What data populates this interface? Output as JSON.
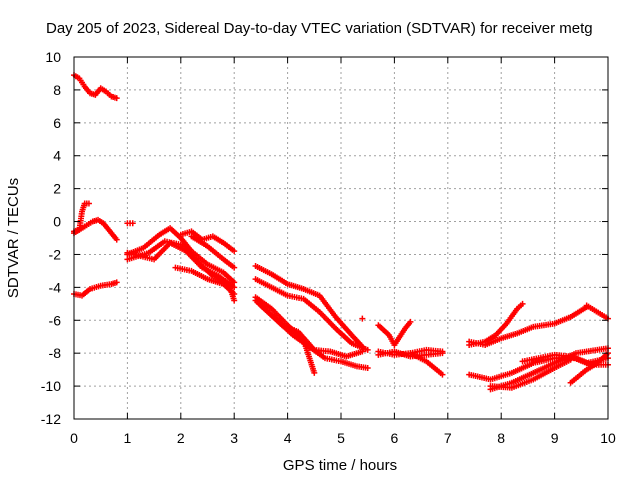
{
  "chart_data": {
    "type": "scatter",
    "title": "Day 205 of 2023, Sidereal Day-to-day VTEC variation (SDTVAR) for receiver metg",
    "xlabel": "GPS time / hours",
    "ylabel": "SDTVAR / TECUs",
    "xlim": [
      0,
      10
    ],
    "ylim": [
      -12,
      10
    ],
    "x_ticks": [
      "0",
      "1",
      "2",
      "3",
      "4",
      "5",
      "6",
      "7",
      "8",
      "9",
      "10"
    ],
    "y_ticks": [
      "-12",
      "-10",
      "-8",
      "-6",
      "-4",
      "-2",
      "0",
      "2",
      "4",
      "6",
      "8",
      "10"
    ],
    "grid": true,
    "marker": "+",
    "color": "#ff0000",
    "series": [
      {
        "points": [
          [
            0.0,
            8.9
          ],
          [
            0.1,
            8.7
          ],
          [
            0.2,
            8.2
          ],
          [
            0.3,
            7.8
          ],
          [
            0.4,
            7.7
          ],
          [
            0.5,
            8.1
          ],
          [
            0.6,
            7.9
          ],
          [
            0.7,
            7.6
          ],
          [
            0.8,
            7.5
          ]
        ]
      },
      {
        "points": [
          [
            0.0,
            -0.6
          ],
          [
            0.1,
            -0.5
          ],
          [
            0.15,
            0.6
          ],
          [
            0.2,
            1.1
          ],
          [
            0.28,
            1.1
          ]
        ]
      },
      {
        "points": [
          [
            0.0,
            -0.7
          ],
          [
            0.2,
            -0.3
          ],
          [
            0.35,
            0.0
          ],
          [
            0.45,
            0.1
          ],
          [
            0.55,
            -0.1
          ],
          [
            0.7,
            -0.7
          ],
          [
            0.8,
            -1.1
          ]
        ]
      },
      {
        "points": [
          [
            0.0,
            -4.4
          ],
          [
            0.15,
            -4.5
          ],
          [
            0.3,
            -4.1
          ],
          [
            0.5,
            -3.9
          ],
          [
            0.7,
            -3.8
          ],
          [
            0.8,
            -3.7
          ]
        ]
      },
      {
        "points": [
          [
            1.0,
            -0.1
          ],
          [
            1.1,
            -0.1
          ]
        ]
      },
      {
        "points": [
          [
            1.0,
            -2.0
          ],
          [
            1.3,
            -1.6
          ],
          [
            1.6,
            -0.8
          ],
          [
            1.8,
            -0.4
          ],
          [
            2.0,
            -1.0
          ],
          [
            2.2,
            -1.8
          ],
          [
            2.5,
            -2.6
          ],
          [
            2.8,
            -3.1
          ],
          [
            3.0,
            -3.7
          ]
        ]
      },
      {
        "points": [
          [
            1.0,
            -2.3
          ],
          [
            1.4,
            -1.9
          ],
          [
            1.7,
            -1.2
          ],
          [
            2.0,
            -1.4
          ],
          [
            2.3,
            -2.4
          ],
          [
            2.6,
            -3.3
          ],
          [
            2.9,
            -3.8
          ],
          [
            3.0,
            -4.8
          ]
        ]
      },
      {
        "points": [
          [
            1.0,
            -1.9
          ],
          [
            1.5,
            -2.3
          ],
          [
            1.8,
            -1.3
          ],
          [
            2.1,
            -1.8
          ],
          [
            2.4,
            -2.8
          ],
          [
            2.7,
            -3.3
          ],
          [
            3.0,
            -4.0
          ]
        ]
      },
      {
        "points": [
          [
            1.9,
            -2.8
          ],
          [
            2.2,
            -3.0
          ],
          [
            2.5,
            -3.5
          ],
          [
            2.8,
            -3.8
          ],
          [
            3.0,
            -4.4
          ]
        ]
      },
      {
        "points": [
          [
            2.0,
            -0.8
          ],
          [
            2.2,
            -0.6
          ],
          [
            2.4,
            -1.1
          ],
          [
            2.6,
            -0.9
          ],
          [
            2.8,
            -1.3
          ],
          [
            3.0,
            -1.8
          ]
        ]
      },
      {
        "points": [
          [
            2.2,
            -0.9
          ],
          [
            2.5,
            -1.5
          ],
          [
            2.8,
            -2.3
          ],
          [
            3.0,
            -2.8
          ]
        ]
      },
      {
        "points": [
          [
            3.4,
            -2.7
          ],
          [
            3.7,
            -3.2
          ],
          [
            4.0,
            -3.8
          ],
          [
            4.3,
            -4.1
          ],
          [
            4.6,
            -4.5
          ],
          [
            4.9,
            -5.8
          ],
          [
            5.2,
            -6.9
          ],
          [
            5.4,
            -7.6
          ]
        ]
      },
      {
        "points": [
          [
            3.4,
            -3.5
          ],
          [
            3.7,
            -4.0
          ],
          [
            4.0,
            -4.5
          ],
          [
            4.3,
            -4.7
          ],
          [
            4.6,
            -5.5
          ],
          [
            4.9,
            -6.5
          ],
          [
            5.2,
            -7.4
          ],
          [
            5.5,
            -7.8
          ]
        ]
      },
      {
        "points": [
          [
            3.4,
            -4.6
          ],
          [
            3.7,
            -5.3
          ],
          [
            4.0,
            -6.3
          ],
          [
            4.3,
            -7.2
          ],
          [
            4.5,
            -9.2
          ]
        ]
      },
      {
        "points": [
          [
            3.4,
            -4.8
          ],
          [
            3.8,
            -6.0
          ],
          [
            4.1,
            -6.9
          ],
          [
            4.4,
            -7.6
          ],
          [
            4.7,
            -8.3
          ],
          [
            5.0,
            -8.5
          ],
          [
            5.3,
            -8.8
          ],
          [
            5.5,
            -8.9
          ]
        ]
      },
      {
        "points": [
          [
            3.5,
            -5.1
          ],
          [
            3.9,
            -6.3
          ],
          [
            4.2,
            -6.7
          ],
          [
            4.5,
            -7.8
          ],
          [
            4.8,
            -7.9
          ],
          [
            5.1,
            -8.2
          ],
          [
            5.4,
            -7.9
          ]
        ]
      },
      {
        "points": [
          [
            5.4,
            -5.9
          ]
        ]
      },
      {
        "points": [
          [
            5.7,
            -6.3
          ],
          [
            5.9,
            -6.9
          ],
          [
            6.0,
            -7.5
          ],
          [
            6.2,
            -6.5
          ],
          [
            6.3,
            -6.1
          ]
        ]
      },
      {
        "points": [
          [
            5.7,
            -7.9
          ],
          [
            6.0,
            -8.1
          ],
          [
            6.3,
            -8.0
          ],
          [
            6.6,
            -7.8
          ],
          [
            6.9,
            -7.9
          ]
        ]
      },
      {
        "points": [
          [
            5.7,
            -8.1
          ],
          [
            6.0,
            -7.9
          ],
          [
            6.3,
            -8.2
          ],
          [
            6.6,
            -8.1
          ],
          [
            6.9,
            -8.0
          ]
        ]
      },
      {
        "points": [
          [
            6.3,
            -8.0
          ],
          [
            6.6,
            -8.5
          ],
          [
            6.9,
            -9.3
          ]
        ]
      },
      {
        "points": [
          [
            7.4,
            -7.5
          ],
          [
            7.7,
            -7.3
          ],
          [
            7.9,
            -6.9
          ],
          [
            8.1,
            -6.2
          ],
          [
            8.3,
            -5.3
          ],
          [
            8.4,
            -5.0
          ]
        ]
      },
      {
        "points": [
          [
            7.4,
            -7.3
          ],
          [
            7.7,
            -7.5
          ],
          [
            8.0,
            -7.1
          ],
          [
            8.3,
            -6.8
          ],
          [
            8.6,
            -6.4
          ],
          [
            9.0,
            -6.2
          ],
          [
            9.3,
            -5.8
          ],
          [
            9.6,
            -5.2
          ]
        ]
      },
      {
        "points": [
          [
            9.6,
            -5.1
          ],
          [
            10.0,
            -5.9
          ]
        ]
      },
      {
        "points": [
          [
            7.4,
            -9.3
          ],
          [
            7.8,
            -9.6
          ],
          [
            8.2,
            -9.2
          ],
          [
            8.6,
            -8.6
          ],
          [
            9.0,
            -8.3
          ],
          [
            9.4,
            -8.3
          ],
          [
            9.7,
            -8.7
          ],
          [
            10.0,
            -8.7
          ]
        ]
      },
      {
        "points": [
          [
            7.8,
            -10.2
          ],
          [
            8.2,
            -9.8
          ],
          [
            8.6,
            -9.2
          ],
          [
            9.0,
            -8.6
          ],
          [
            9.4,
            -8.0
          ],
          [
            9.8,
            -7.8
          ],
          [
            10.0,
            -7.7
          ]
        ]
      },
      {
        "points": [
          [
            7.8,
            -10.0
          ],
          [
            8.2,
            -10.1
          ],
          [
            8.6,
            -9.6
          ],
          [
            9.0,
            -8.9
          ],
          [
            9.3,
            -8.4
          ]
        ]
      },
      {
        "points": [
          [
            8.4,
            -8.5
          ],
          [
            8.7,
            -8.3
          ],
          [
            9.0,
            -8.1
          ],
          [
            9.3,
            -8.2
          ],
          [
            9.6,
            -8.6
          ],
          [
            10.0,
            -8.3
          ]
        ]
      },
      {
        "points": [
          [
            9.3,
            -9.8
          ],
          [
            9.6,
            -9.0
          ],
          [
            9.8,
            -8.6
          ],
          [
            10.0,
            -8.0
          ]
        ]
      }
    ]
  }
}
